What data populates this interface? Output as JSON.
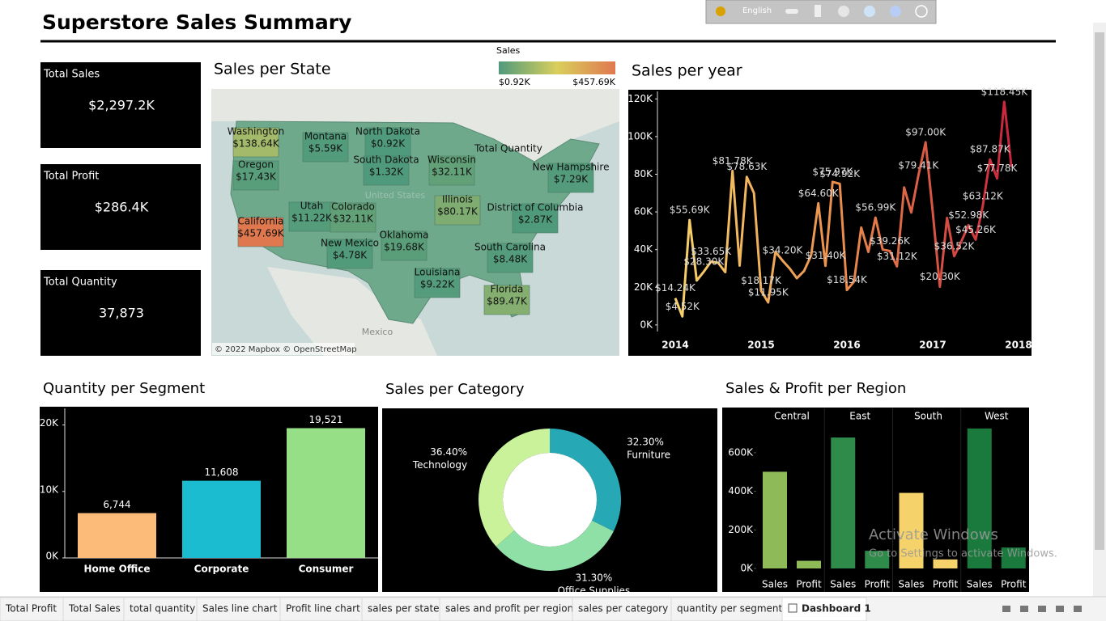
{
  "header": {
    "title": "Superstore Sales Summary"
  },
  "toolbar": {
    "language": "English"
  },
  "kpis": [
    {
      "label": "Total Sales",
      "value": "$2,297.2K"
    },
    {
      "label": "Total Profit",
      "value": "$286.4K"
    },
    {
      "label": "Total Quantity",
      "value": "37,873"
    }
  ],
  "chart_data": [
    {
      "type": "map",
      "title": "Sales per State",
      "legend_title": "Sales",
      "legend_labels": [
        "$0.92K",
        "$457.69K"
      ],
      "color_scale": [
        "#4f9a7c",
        "#d9cf5c",
        "#e0784f"
      ],
      "categories": [
        "Washington",
        "Montana",
        "North Dakota",
        "Oregon",
        "South Dakota",
        "Wisconsin",
        "New Hampshire",
        "Utah",
        "Colorado",
        "Illinois",
        "District of Columbia",
        "California",
        "New Mexico",
        "Oklahoma",
        "South Carolina",
        "Louisiana",
        "Florida"
      ],
      "values": [
        138.64,
        5.59,
        0.92,
        17.43,
        1.32,
        32.11,
        7.29,
        11.22,
        32.11,
        80.17,
        2.87,
        457.69,
        4.78,
        19.68,
        8.48,
        9.22,
        89.47
      ],
      "value_labels": [
        "$138.64K",
        "$5.59K",
        "$0.92K",
        "$17.43K",
        "$1.32K",
        "$32.11K",
        "$7.29K",
        "$11.22K",
        "$32.11K",
        "$80.17K",
        "$2.87K",
        "$457.69K",
        "$4.78K",
        "$19.68K",
        "$8.48K",
        "$9.22K",
        "$89.47K"
      ],
      "annotations": [
        "Total Quantity",
        "United States",
        "Mexico"
      ],
      "attribution": "© 2022 Mapbox © OpenStreetMap"
    },
    {
      "type": "line",
      "title": "Sales per year",
      "colors": [
        "#f7d36a",
        "#e98a4c",
        "#c8203c"
      ],
      "xlim": [
        2014,
        2018
      ],
      "xticks": [
        2014,
        2015,
        2016,
        2017,
        2018
      ],
      "ylim": [
        -3.5,
        124
      ],
      "yticks": [
        {
          "value": 0,
          "label": "0K"
        },
        {
          "value": 20,
          "label": "20K"
        },
        {
          "value": 40,
          "label": "40K"
        },
        {
          "value": 60,
          "label": "60K"
        },
        {
          "value": 80,
          "label": "80K"
        },
        {
          "value": 100,
          "label": "100K"
        },
        {
          "value": 120,
          "label": "120K"
        }
      ],
      "values": [
        14.24,
        4.52,
        55.69,
        23.6,
        28.3,
        33.65,
        33.0,
        28.0,
        81.78,
        31.5,
        78.63,
        70.0,
        18.17,
        11.95,
        38.8,
        34.2,
        30.0,
        24.8,
        28.6,
        36.9,
        64.6,
        31.4,
        75.97,
        74.92,
        18.54,
        22.98,
        51.7,
        38.75,
        56.99,
        40.0,
        39.26,
        31.12,
        73.0,
        59.7,
        79.41,
        97.0,
        60.0,
        20.3,
        56.8,
        36.52,
        44.3,
        52.98,
        45.26,
        63.12,
        87.87,
        77.78,
        118.45,
        83.8
      ],
      "value_labels": [
        "$14.24K",
        "$4.52K",
        "$55.69K",
        null,
        "$28.30K",
        "$33.65K",
        null,
        null,
        "$81.78K",
        null,
        "$78.63K",
        null,
        "$18.17K",
        "$11.95K",
        null,
        "$34.20K",
        null,
        null,
        null,
        null,
        "$64.60K",
        "$31.40K",
        "$75.97K",
        "$74.92K",
        "$18.54K",
        null,
        null,
        null,
        "$56.99K",
        null,
        "$39.26K",
        "$31.12K",
        null,
        null,
        "$79.41K",
        "$97.00K",
        null,
        "$20.30K",
        null,
        "$36.52K",
        null,
        "$52.98K",
        "$45.26K",
        "$63.12K",
        "$87.87K",
        "$77.78K",
        "$118.45K",
        null
      ]
    },
    {
      "type": "bar",
      "title": "Quantity per Segment",
      "categories": [
        "Home Office",
        "Corporate",
        "Consumer"
      ],
      "values": [
        6744,
        11608,
        19521
      ],
      "value_labels": [
        "6,744",
        "11,608",
        "19,521"
      ],
      "colors": [
        "#fdbb7a",
        "#1bbccf",
        "#97df87"
      ],
      "ylim": [
        0,
        22500
      ],
      "yticks": [
        {
          "value": 0,
          "label": "0K"
        },
        {
          "value": 10000,
          "label": "10K"
        },
        {
          "value": 20000,
          "label": "20K"
        }
      ]
    },
    {
      "type": "donut",
      "title": "Sales per Category",
      "categories": [
        "Furniture",
        "Office Supplies",
        "Technology"
      ],
      "values": [
        32.3,
        31.3,
        36.4
      ],
      "value_labels": [
        "32.30%",
        "31.30%",
        "36.40%"
      ],
      "colors": [
        "#26a8b5",
        "#8fe0a7",
        "#c9f29a"
      ]
    },
    {
      "type": "grouped_bar",
      "title": "Sales & Profit per Region",
      "categories": [
        "Central",
        "East",
        "South",
        "West"
      ],
      "colors": [
        "#8fba58",
        "#2e8b4a",
        "#f5d26a",
        "#1a7a3e"
      ],
      "series": [
        {
          "name": "Sales",
          "values": [
            501.24,
            678.78,
            391.72,
            725.46
          ]
        },
        {
          "name": "Profit",
          "values": [
            39.71,
            91.52,
            46.75,
            108.42
          ]
        }
      ],
      "ylim": [
        0,
        830
      ],
      "yticks": [
        {
          "value": 0,
          "label": "0K"
        },
        {
          "value": 200,
          "label": "200K"
        },
        {
          "value": 400,
          "label": "400K"
        },
        {
          "value": 600,
          "label": "600K"
        }
      ]
    }
  ],
  "tabs": [
    "Total Profit",
    "Total Sales",
    "total quantity",
    "Sales line chart",
    "Profit line chart",
    "sales per state",
    "sales and profit per region",
    "sales per category",
    "quantity per segment",
    "Dashboard 1"
  ],
  "active_tab": 9,
  "watermark": {
    "title": "Activate Windows",
    "subtitle": "Go to Settings to activate Windows."
  }
}
